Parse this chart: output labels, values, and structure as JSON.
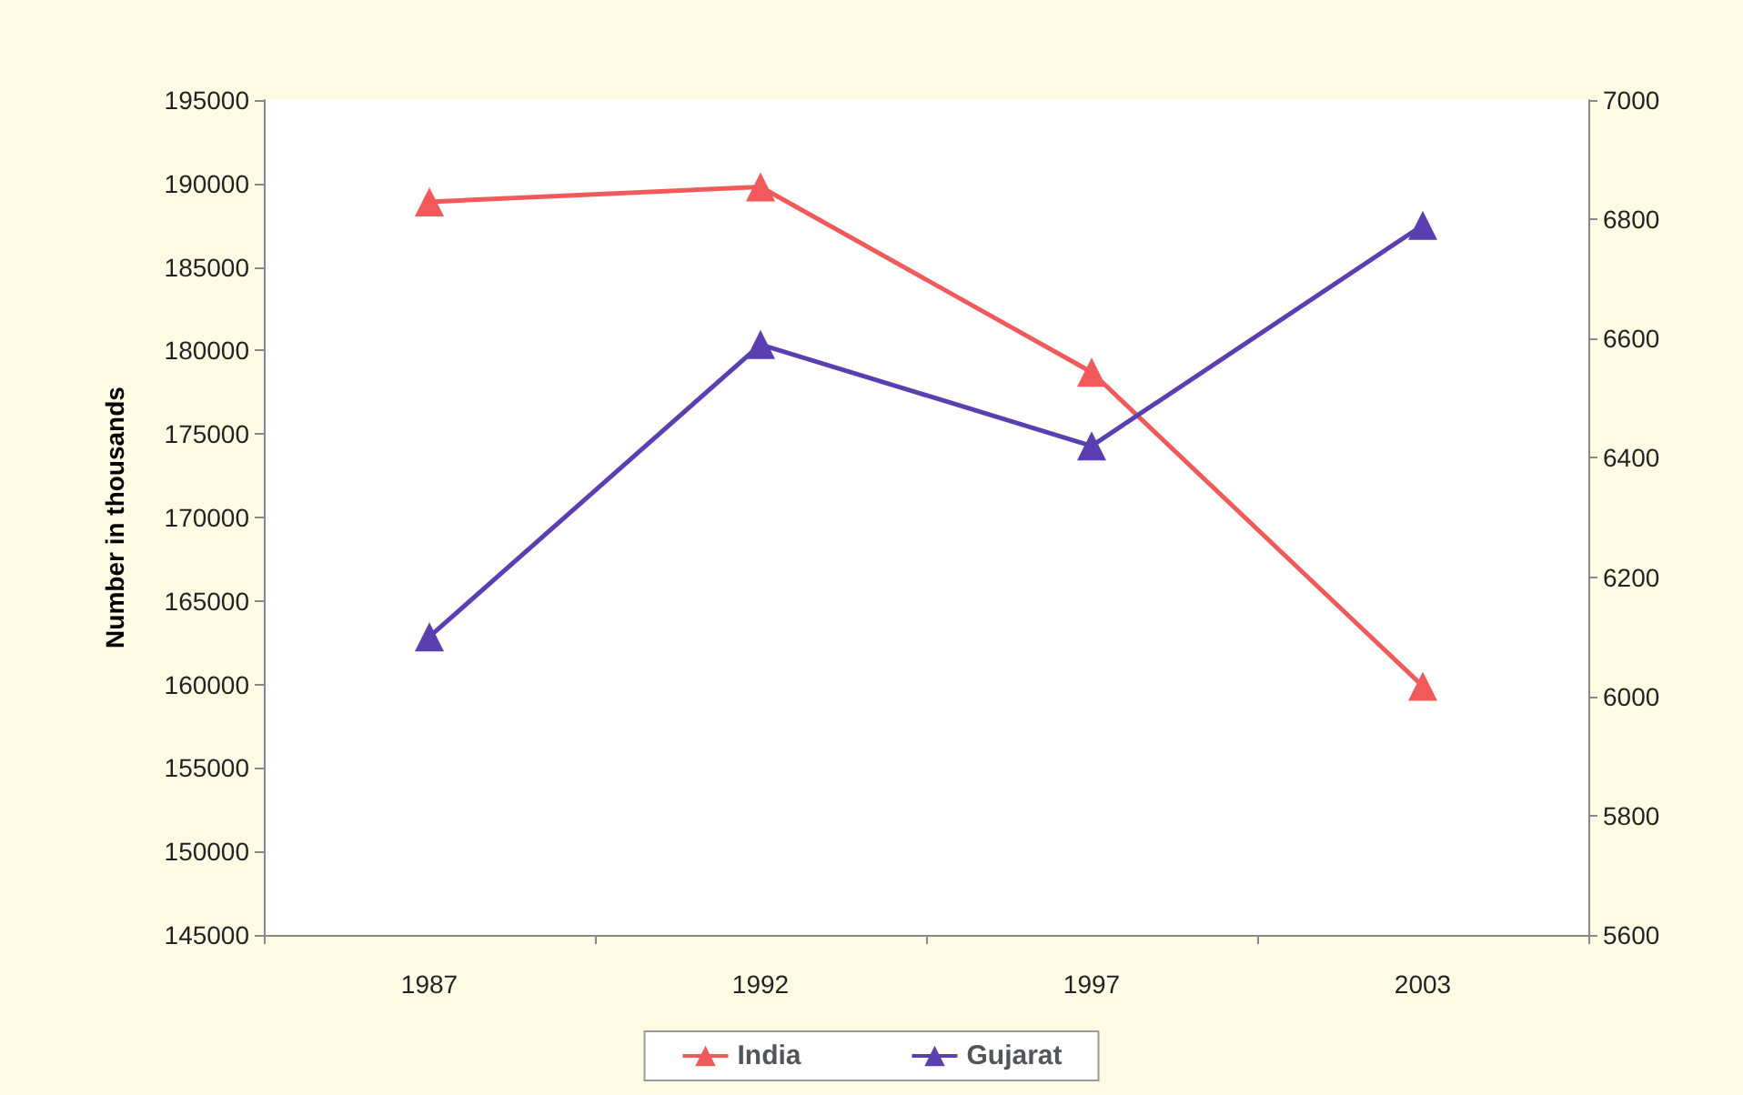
{
  "chart_data": {
    "type": "line",
    "ylabel": "Number in thousands",
    "categories": [
      "1987",
      "1992",
      "1997",
      "2003"
    ],
    "series": [
      {
        "name": "India",
        "color": "#f05a5a",
        "values": [
          188900,
          189800,
          178700,
          159900
        ]
      },
      {
        "name": "Gujarat",
        "color": "#5a3fb0",
        "axis": "y2",
        "values": [
          6100,
          6590,
          6420,
          6790
        ]
      }
    ],
    "ylim": [
      145000,
      195000
    ],
    "yticks": [
      145000,
      150000,
      155000,
      160000,
      165000,
      170000,
      175000,
      180000,
      185000,
      190000,
      195000
    ],
    "y2lim": [
      5600,
      7000
    ],
    "y2ticks": [
      5600,
      5800,
      6000,
      6200,
      6400,
      6600,
      6800,
      7000
    ],
    "marker": "triangle",
    "grid": false,
    "legend": "bottom"
  }
}
